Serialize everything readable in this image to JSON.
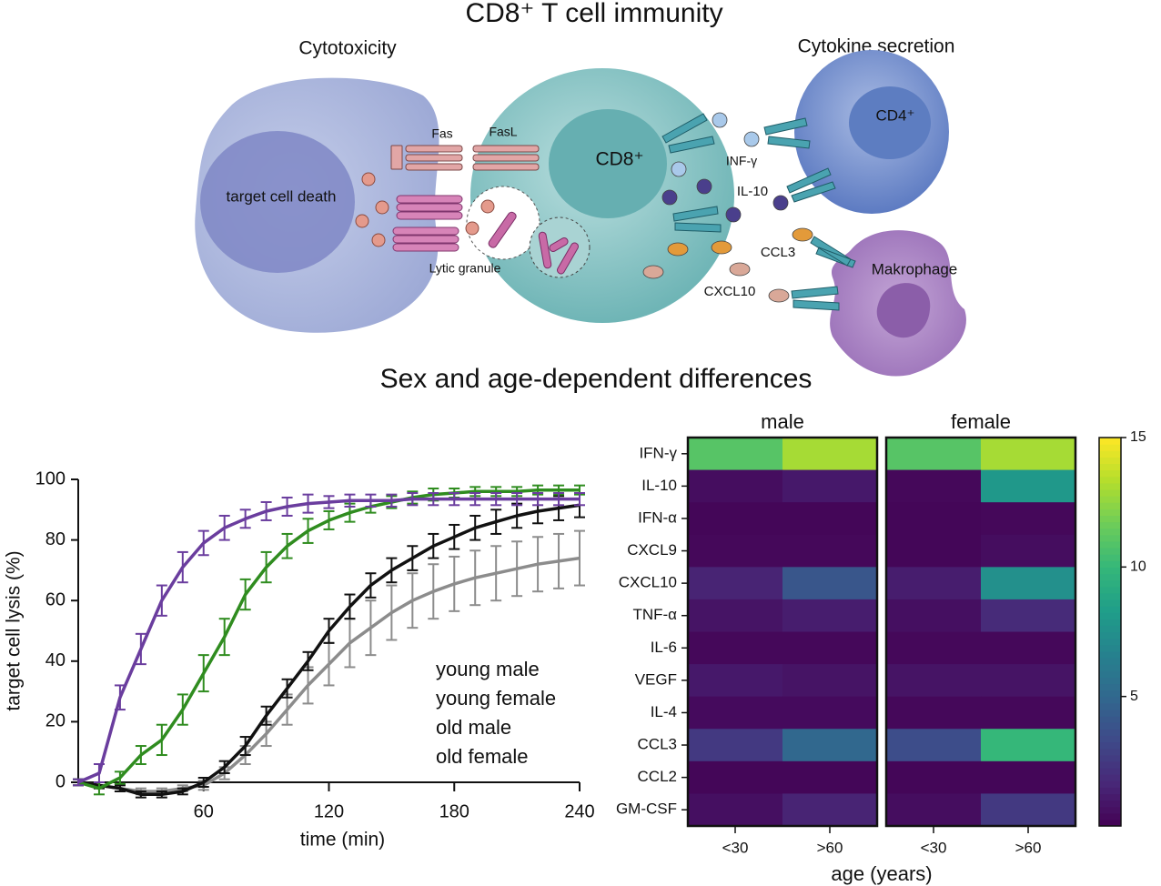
{
  "diagram": {
    "title": "CD8⁺ T cell immunity",
    "cytotoxicity": "Cytotoxicity",
    "cytokine_secretion": "Cytokine secretion",
    "target": "target cell death",
    "fas": "Fas",
    "fasl": "FasL",
    "cd8": "CD8⁺",
    "lytic": "Lytic granule",
    "cd4": "CD4⁺",
    "infg": "INF-γ",
    "il10": "IL-10",
    "ccl3": "CCL3",
    "cxcl10": "CXCL10",
    "macrophage": "Makrophage",
    "section_title": "Sex and age-dependent differences"
  },
  "chart_data": [
    {
      "type": "line",
      "xlabel": "time (min)",
      "ylabel": "target cell lysis (%)",
      "x": [
        0,
        10,
        20,
        30,
        40,
        50,
        60,
        70,
        80,
        90,
        100,
        110,
        120,
        130,
        140,
        150,
        160,
        170,
        180,
        190,
        200,
        210,
        220,
        230,
        240
      ],
      "xlim": [
        0,
        240
      ],
      "xticks": [
        60,
        120,
        180,
        240
      ],
      "ylim": [
        -5,
        100
      ],
      "yticks": [
        0,
        20,
        40,
        60,
        80,
        100
      ],
      "series": [
        {
          "name": "young male",
          "color": "#8c8c8c",
          "values": [
            0,
            -1,
            -2,
            -3,
            -3,
            -2,
            -1,
            3,
            9,
            16,
            24,
            32,
            39,
            46,
            51,
            56,
            60,
            63,
            65.5,
            67.5,
            69,
            70.5,
            72,
            73,
            74
          ],
          "errors": [
            1,
            1,
            1,
            1,
            1,
            1,
            1.5,
            2,
            3,
            4,
            5,
            6,
            7,
            8,
            9,
            9,
            9,
            9,
            9,
            9,
            9,
            9,
            9,
            9,
            9
          ]
        },
        {
          "name": "young female",
          "color": "#111111",
          "values": [
            0,
            -1,
            -2,
            -4,
            -4,
            -3,
            0,
            5,
            12,
            22,
            31,
            40,
            50,
            58,
            65,
            70,
            74,
            78,
            81,
            84,
            86,
            88,
            89.5,
            90.5,
            91.5
          ],
          "errors": [
            1,
            1,
            1,
            1,
            1,
            1,
            1.5,
            2,
            3,
            3,
            3,
            3,
            4,
            4,
            4,
            4,
            4,
            4,
            4,
            4,
            4,
            4,
            4,
            4,
            4
          ]
        },
        {
          "name": "old male",
          "color": "#2f8c1f",
          "values": [
            0,
            -2,
            1.5,
            9,
            14,
            24,
            36,
            48,
            62,
            71,
            78,
            83,
            86.5,
            89,
            91,
            92.5,
            94,
            95,
            95.5,
            96,
            96,
            96,
            96.5,
            96.5,
            96.5
          ],
          "errors": [
            1,
            2,
            2,
            3,
            5,
            5,
            6,
            6,
            5,
            5,
            4,
            4,
            3,
            3,
            2,
            2,
            2,
            2,
            1.5,
            1.5,
            1.5,
            1.5,
            1.5,
            1.5,
            1.5
          ]
        },
        {
          "name": "old female",
          "color": "#6a3d9e",
          "values": [
            0,
            3,
            28,
            44,
            60,
            71,
            79,
            84,
            87,
            89.5,
            91,
            92,
            92.5,
            93,
            93,
            93,
            93.5,
            93.5,
            93.5,
            93.5,
            93.5,
            93.5,
            93.5,
            93.5,
            93.5
          ],
          "errors": [
            1,
            3,
            4,
            5,
            5,
            5,
            4,
            4,
            3,
            3,
            3,
            3,
            2,
            2,
            2,
            2,
            2,
            2,
            2,
            2,
            2,
            2,
            2,
            2,
            2
          ]
        }
      ]
    },
    {
      "type": "heatmap",
      "xlabel": "age (years)",
      "rows": [
        "IFN-γ",
        "IL-10",
        "IFN-α",
        "CXCL9",
        "CXCL10",
        "TNF-α",
        "IL-6",
        "VEGF",
        "IL-4",
        "CCL3",
        "CCL2",
        "GM-CSF"
      ],
      "columns": [
        "<30",
        ">60"
      ],
      "colormap": "viridis",
      "zlim": [
        0,
        15
      ],
      "zticks": [
        5,
        10,
        15
      ],
      "panels": [
        {
          "name": "male",
          "values": [
            [
              11,
              13
            ],
            [
              0.5,
              1
            ],
            [
              0.2,
              0.2
            ],
            [
              0.3,
              0.3
            ],
            [
              1.5,
              4
            ],
            [
              0.8,
              1.2
            ],
            [
              0.3,
              0.3
            ],
            [
              1,
              0.8
            ],
            [
              0.4,
              0.4
            ],
            [
              2.5,
              5
            ],
            [
              0.2,
              0.2
            ],
            [
              0.6,
              1.5
            ]
          ]
        },
        {
          "name": "female",
          "values": [
            [
              11,
              13
            ],
            [
              0.3,
              8
            ],
            [
              0.2,
              0.3
            ],
            [
              0.2,
              0.5
            ],
            [
              1.2,
              7.5
            ],
            [
              0.6,
              1.8
            ],
            [
              0.3,
              0.3
            ],
            [
              0.8,
              0.8
            ],
            [
              0.3,
              0.3
            ],
            [
              3.5,
              10
            ],
            [
              0.2,
              0.2
            ],
            [
              0.5,
              2.5
            ]
          ]
        }
      ]
    }
  ]
}
